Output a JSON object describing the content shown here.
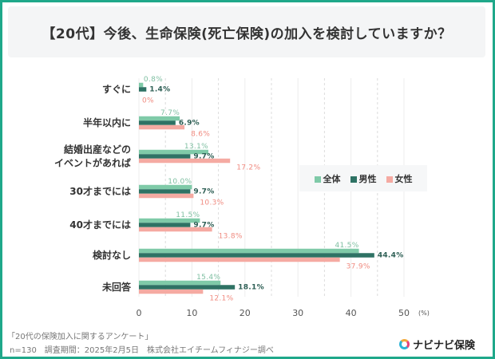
{
  "title": "【20代】今後、生命保険(死亡保険)の加入を検討していますか？",
  "legend": [
    "全体",
    "男性",
    "女性"
  ],
  "colors": {
    "全体": "#7fcaa8",
    "男性": "#2e7264",
    "女性": "#f5aaa2",
    "label_total": "#7fbfa2",
    "label_male": "#2e5f55",
    "label_female": "#f08b80",
    "frame": "#1fa88a"
  },
  "footer": {
    "line1": "「20代の保険加入に関するアンケート」",
    "line2": "n=130　調査期間：2025年2月5日　株式会社エイチームフィナジー調べ"
  },
  "logo": "ナビナビ保険",
  "chart_data": {
    "type": "bar",
    "orientation": "horizontal",
    "categories": [
      "すぐに",
      "半年以内に",
      "結婚出産などの\nイベントがあれば",
      "30才までには",
      "40才までには",
      "検討なし",
      "未回答"
    ],
    "series": [
      {
        "name": "全体",
        "values": [
          0.8,
          7.7,
          13.1,
          10.0,
          11.5,
          41.5,
          15.4
        ]
      },
      {
        "name": "男性",
        "values": [
          1.4,
          6.9,
          9.7,
          9.7,
          9.7,
          44.4,
          18.1
        ]
      },
      {
        "name": "女性",
        "values": [
          0,
          8.6,
          17.2,
          10.3,
          13.8,
          37.9,
          12.1
        ]
      }
    ],
    "data_labels": [
      [
        "0.8%",
        "7.7%",
        "13.1%",
        "10.0%",
        "11.5%",
        "41.5%",
        "15.4%"
      ],
      [
        "1.4%",
        "6.9%",
        "9.7%",
        "9.7%",
        "9.7%",
        "44.4%",
        "18.1%"
      ],
      [
        "0%",
        "8.6%",
        "17.2%",
        "10.3%",
        "13.8%",
        "37.9%",
        "12.1%"
      ]
    ],
    "xlim": [
      0,
      50
    ],
    "xticks": [
      "0",
      "10",
      "20",
      "30",
      "40",
      "50"
    ],
    "xunit": "(%)",
    "grid": true,
    "legend_position": "right-middle"
  }
}
